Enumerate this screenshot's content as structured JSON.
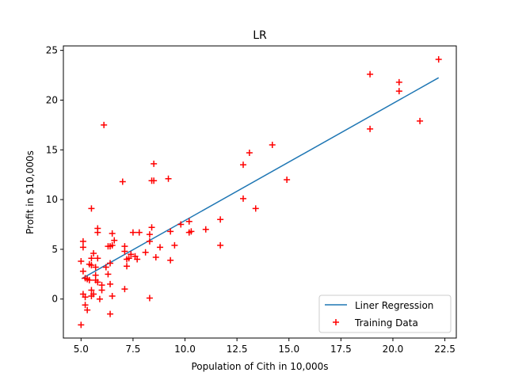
{
  "chart_data": {
    "type": "scatter",
    "title": "LR",
    "xlabel": "Population of Cith in 10,000s",
    "ylabel": "Profit in $10,000s",
    "xlim": [
      4.15,
      23.05
    ],
    "ylim": [
      -3.92,
      25.45
    ],
    "xticks": [
      5.0,
      7.5,
      10.0,
      12.5,
      15.0,
      17.5,
      20.0,
      22.5
    ],
    "xtick_labels": [
      "5.0",
      "7.5",
      "10.0",
      "12.5",
      "15.0",
      "17.5",
      "20.0",
      "22.5"
    ],
    "yticks": [
      0,
      5,
      10,
      15,
      20,
      25
    ],
    "ytick_labels": [
      "0",
      "5",
      "10",
      "15",
      "20",
      "25"
    ],
    "grid": false,
    "legend_position": "lower-right",
    "series": [
      {
        "name": "Liner Regression",
        "kind": "line",
        "color": "#1f77b4",
        "x": [
          5.03,
          22.2
        ],
        "y": [
          2.05,
          22.25
        ]
      },
      {
        "name": "Training Data",
        "kind": "scatter",
        "marker": "+",
        "color": "#ff0000",
        "points": [
          [
            22.2,
            24.1
          ],
          [
            18.9,
            22.6
          ],
          [
            20.3,
            21.8
          ],
          [
            20.3,
            20.9
          ],
          [
            21.3,
            17.9
          ],
          [
            18.9,
            17.1
          ],
          [
            14.2,
            15.5
          ],
          [
            13.1,
            14.7
          ],
          [
            12.8,
            13.5
          ],
          [
            14.9,
            12.0
          ],
          [
            12.8,
            10.1
          ],
          [
            13.4,
            9.1
          ],
          [
            11.7,
            8.0
          ],
          [
            11.7,
            5.4
          ],
          [
            11.0,
            7.0
          ],
          [
            10.2,
            7.8
          ],
          [
            10.2,
            6.7
          ],
          [
            9.8,
            7.5
          ],
          [
            9.3,
            6.8
          ],
          [
            9.5,
            5.4
          ],
          [
            9.3,
            3.9
          ],
          [
            8.8,
            5.2
          ],
          [
            9.2,
            12.1
          ],
          [
            8.5,
            13.6
          ],
          [
            8.4,
            11.9
          ],
          [
            8.5,
            11.9
          ],
          [
            6.1,
            17.5
          ],
          [
            7.0,
            11.8
          ],
          [
            5.5,
            9.1
          ],
          [
            8.4,
            7.2
          ],
          [
            8.3,
            6.5
          ],
          [
            8.3,
            5.8
          ],
          [
            8.1,
            4.7
          ],
          [
            7.8,
            6.7
          ],
          [
            7.5,
            6.7
          ],
          [
            7.6,
            4.3
          ],
          [
            7.2,
            4.0
          ],
          [
            7.1,
            5.3
          ],
          [
            7.1,
            4.8
          ],
          [
            7.2,
            3.3
          ],
          [
            7.1,
            1.0
          ],
          [
            6.6,
            5.9
          ],
          [
            6.5,
            6.6
          ],
          [
            6.5,
            5.4
          ],
          [
            6.4,
            5.3
          ],
          [
            6.3,
            5.3
          ],
          [
            6.4,
            3.6
          ],
          [
            6.3,
            2.5
          ],
          [
            6.4,
            1.5
          ],
          [
            6.4,
            -1.5
          ],
          [
            6.5,
            0.3
          ],
          [
            6.2,
            3.2
          ],
          [
            6.0,
            0.9
          ],
          [
            6.0,
            1.4
          ],
          [
            5.9,
            0.0
          ],
          [
            5.8,
            7.1
          ],
          [
            5.8,
            6.7
          ],
          [
            5.8,
            4.1
          ],
          [
            5.7,
            3.2
          ],
          [
            5.7,
            2.4
          ],
          [
            5.7,
            1.9
          ],
          [
            5.8,
            1.7
          ],
          [
            5.6,
            4.6
          ],
          [
            5.5,
            4.1
          ],
          [
            5.5,
            3.4
          ],
          [
            5.4,
            3.5
          ],
          [
            5.4,
            1.9
          ],
          [
            5.5,
            0.9
          ],
          [
            5.6,
            0.5
          ],
          [
            5.5,
            0.3
          ],
          [
            5.3,
            2.0
          ],
          [
            5.2,
            2.1
          ],
          [
            5.2,
            -0.6
          ],
          [
            5.3,
            -1.1
          ],
          [
            5.1,
            5.8
          ],
          [
            5.1,
            5.2
          ],
          [
            5.0,
            3.8
          ],
          [
            5.1,
            2.8
          ],
          [
            5.1,
            0.5
          ],
          [
            5.2,
            0.2
          ],
          [
            5.0,
            -2.6
          ],
          [
            7.3,
            4.1
          ],
          [
            7.4,
            4.5
          ],
          [
            7.7,
            4.0
          ],
          [
            8.6,
            4.2
          ],
          [
            8.3,
            0.1
          ],
          [
            10.3,
            6.8
          ]
        ]
      }
    ]
  }
}
